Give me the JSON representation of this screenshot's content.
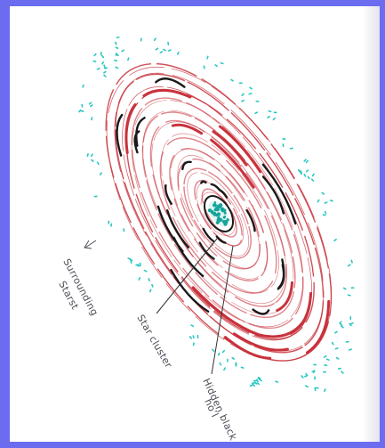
{
  "labels": {
    "surrounding_line1": "Surrounding",
    "surrounding_line2": "Starst",
    "star_cluster": "Star cluster",
    "black_hole_line1": "Hidden black",
    "black_hole_line2": "ho’l"
  },
  "colors": {
    "frame": "#6b6cf0",
    "paper": "#ffffff",
    "arms_red": "#c8323c",
    "arms_black": "#1a1a1a",
    "stars_cyan": "#29c7c2",
    "core_teal": "#16a39a",
    "label_ink": "#4d4d57"
  }
}
